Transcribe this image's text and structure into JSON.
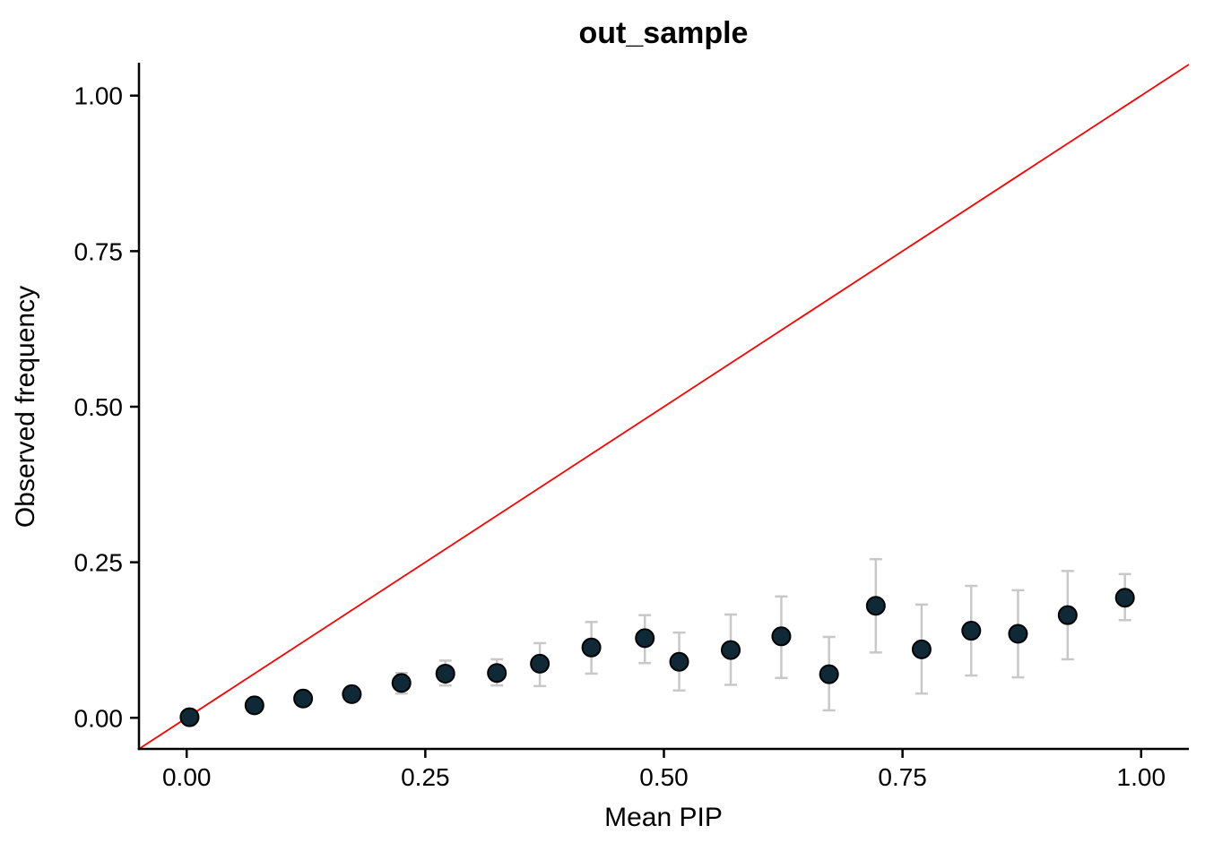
{
  "page": {
    "background": "#ffffff"
  },
  "chart_data": {
    "type": "scatter",
    "title": "out_sample",
    "xlabel": "Mean PIP",
    "ylabel": "Observed frequency",
    "xlim": [
      -0.05,
      1.05
    ],
    "ylim": [
      -0.05,
      1.05
    ],
    "grid": false,
    "legend": "none",
    "x_ticks": {
      "values": [
        0,
        0.25,
        0.5,
        0.75,
        1.0
      ],
      "labels": [
        "0.00",
        "0.25",
        "0.50",
        "0.75",
        "1.00"
      ]
    },
    "y_ticks": {
      "values": [
        0,
        0.25,
        0.5,
        0.75,
        1.0
      ],
      "labels": [
        "0.00",
        "0.25",
        "0.50",
        "0.75",
        "1.00"
      ]
    },
    "identity_line": {
      "from": [
        -0.05,
        -0.05
      ],
      "to": [
        1.05,
        1.05
      ],
      "color": "#ff0000"
    },
    "colors": {
      "point_fill": "#0f2a36",
      "point_stroke": "#000000",
      "error_bar": "#c8c8c8",
      "axis": "#000000",
      "text": "#000000"
    },
    "series": [
      {
        "name": "binned_pip_calibration",
        "points": [
          {
            "x": 0.003,
            "y": 0.001,
            "lo": 0.0,
            "hi": 0.004
          },
          {
            "x": 0.071,
            "y": 0.02,
            "lo": 0.014,
            "hi": 0.027
          },
          {
            "x": 0.122,
            "y": 0.031,
            "lo": 0.023,
            "hi": 0.04
          },
          {
            "x": 0.173,
            "y": 0.038,
            "lo": 0.026,
            "hi": 0.05
          },
          {
            "x": 0.225,
            "y": 0.056,
            "lo": 0.039,
            "hi": 0.072
          },
          {
            "x": 0.271,
            "y": 0.071,
            "lo": 0.052,
            "hi": 0.092
          },
          {
            "x": 0.325,
            "y": 0.072,
            "lo": 0.052,
            "hi": 0.094
          },
          {
            "x": 0.37,
            "y": 0.087,
            "lo": 0.051,
            "hi": 0.12
          },
          {
            "x": 0.424,
            "y": 0.113,
            "lo": 0.071,
            "hi": 0.154
          },
          {
            "x": 0.48,
            "y": 0.128,
            "lo": 0.088,
            "hi": 0.165
          },
          {
            "x": 0.516,
            "y": 0.09,
            "lo": 0.044,
            "hi": 0.137
          },
          {
            "x": 0.57,
            "y": 0.109,
            "lo": 0.053,
            "hi": 0.166
          },
          {
            "x": 0.623,
            "y": 0.131,
            "lo": 0.064,
            "hi": 0.195
          },
          {
            "x": 0.673,
            "y": 0.07,
            "lo": 0.012,
            "hi": 0.13
          },
          {
            "x": 0.722,
            "y": 0.18,
            "lo": 0.105,
            "hi": 0.255
          },
          {
            "x": 0.77,
            "y": 0.11,
            "lo": 0.039,
            "hi": 0.182
          },
          {
            "x": 0.822,
            "y": 0.14,
            "lo": 0.068,
            "hi": 0.212
          },
          {
            "x": 0.871,
            "y": 0.135,
            "lo": 0.065,
            "hi": 0.205
          },
          {
            "x": 0.923,
            "y": 0.165,
            "lo": 0.094,
            "hi": 0.236
          },
          {
            "x": 0.983,
            "y": 0.193,
            "lo": 0.157,
            "hi": 0.231
          }
        ]
      }
    ]
  }
}
